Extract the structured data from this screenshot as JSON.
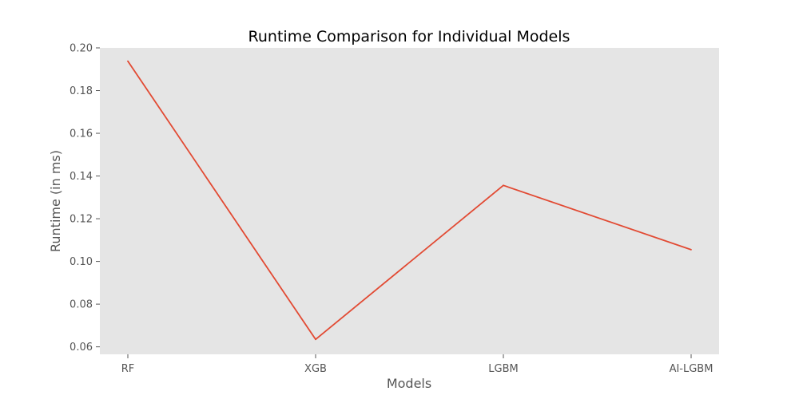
{
  "chart_data": {
    "type": "line",
    "title": "Runtime Comparison for Individual Models",
    "xlabel": "Models",
    "ylabel": "Runtime (in ms)",
    "categories": [
      "RF",
      "XGB",
      "LGBM",
      "AI-LGBM"
    ],
    "series": [
      {
        "values": [
          0.1938,
          0.0635,
          0.1356,
          0.1055
        ]
      }
    ],
    "yticks": [
      "0.06",
      "0.08",
      "0.10",
      "0.12",
      "0.14",
      "0.16",
      "0.18",
      "0.20"
    ],
    "ylim": [
      0.0565,
      0.2
    ],
    "grid": false,
    "legend": "none",
    "colors": {
      "line": "#e24a33",
      "plot_background": "#e5e5e5",
      "tick_color": "#555555"
    }
  }
}
